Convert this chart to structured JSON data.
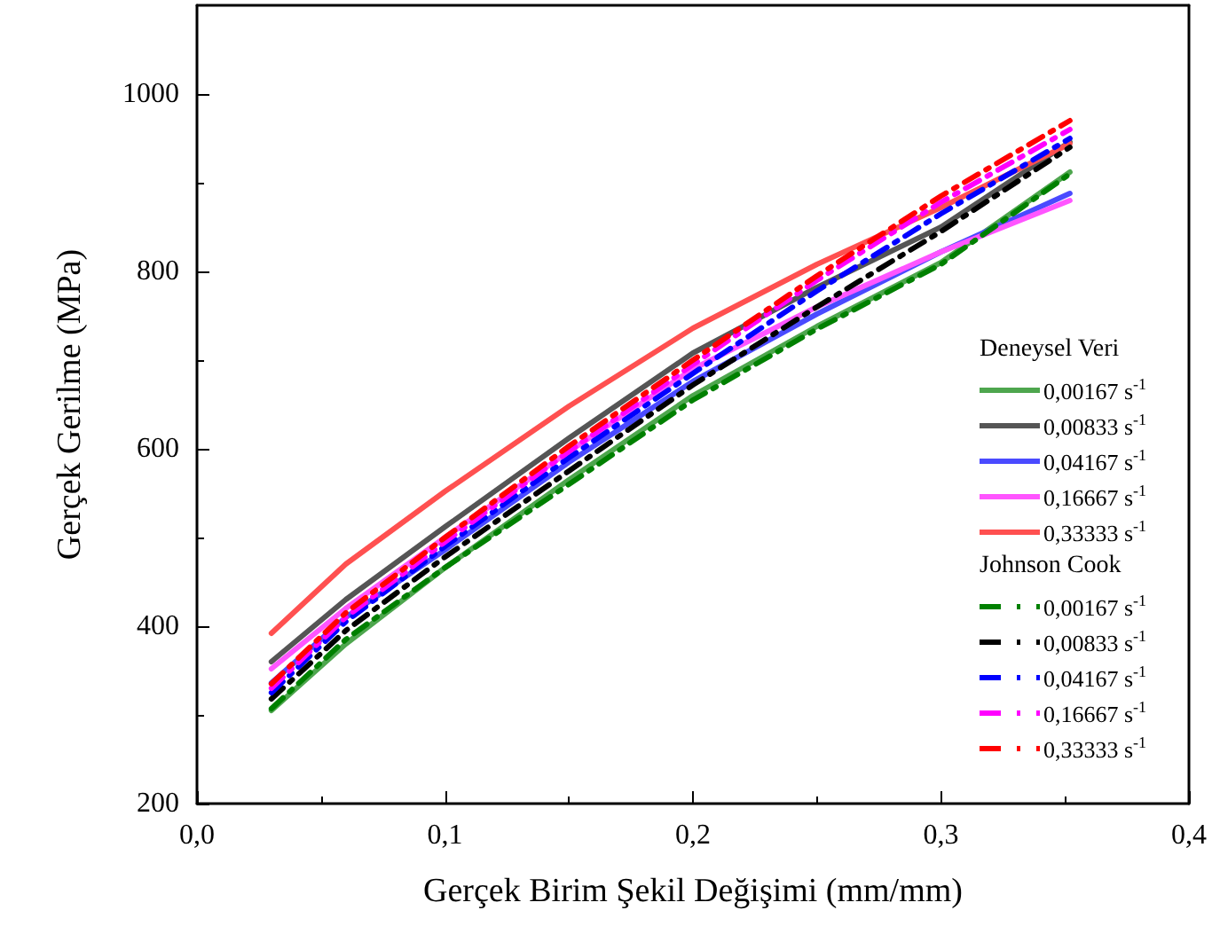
{
  "chart_data": {
    "type": "line",
    "xlabel": "Gerçek Birim Şekil Değişimi (mm/mm)",
    "ylabel": "Gerçek Gerilme (MPa)",
    "legend_title": "Deneysel Veri",
    "annotations": [
      "Johnson Cook"
    ],
    "x": [
      0.03,
      0.06,
      0.1,
      0.15,
      0.2,
      0.25,
      0.3,
      0.352
    ],
    "xlim": [
      0,
      0.4
    ],
    "xticks": [
      {
        "value": 0,
        "label": "0,0"
      },
      {
        "value": 0.1,
        "label": "0,1"
      },
      {
        "value": 0.2,
        "label": "0,2"
      },
      {
        "value": 0.3,
        "label": "0,3"
      },
      {
        "value": 0.4,
        "label": "0,4"
      }
    ],
    "ylim": [
      200,
      1100
    ],
    "yticks": [
      200,
      400,
      600,
      800,
      1000
    ],
    "grid": false,
    "legend": "right",
    "marker": "none",
    "series": [
      {
        "name": "0,00167 s$^{-1}$",
        "color": "#4ea64e",
        "line_style": "solid",
        "values": [
          305,
          380,
          466,
          565,
          660,
          738,
          810,
          912
        ]
      },
      {
        "name": "0,00833 s$^{-1}$",
        "color": "#555555",
        "line_style": "solid",
        "values": [
          360,
          430,
          512,
          612,
          708,
          782,
          850,
          946
        ]
      },
      {
        "name": "0,04167 s$^{-1}$",
        "color": "#4a4aff",
        "line_style": "solid",
        "values": [
          336,
          410,
          486,
          585,
          676,
          752,
          822,
          888
        ]
      },
      {
        "name": "0,16667 s$^{-1}$",
        "color": "#ff55ff",
        "line_style": "solid",
        "values": [
          352,
          420,
          500,
          597,
          690,
          760,
          822,
          880
        ]
      },
      {
        "name": "0,33333 s$^{-1}$",
        "color": "#ff5050",
        "line_style": "solid",
        "values": [
          392,
          470,
          552,
          648,
          736,
          808,
          872,
          944
        ]
      },
      {
        "name": "0,00167 s$^{-1}$",
        "color": "#008000",
        "line_style": "dashed",
        "values": [
          307,
          385,
          466,
          560,
          655,
          735,
          808,
          910
        ]
      },
      {
        "name": "0,00833 s$^{-1}$",
        "color": "#000000",
        "line_style": "dashed",
        "values": [
          318,
          395,
          478,
          575,
          672,
          760,
          845,
          940
        ]
      },
      {
        "name": "0,04167 s$^{-1}$",
        "color": "#0000ff",
        "line_style": "dashed",
        "values": [
          325,
          405,
          490,
          590,
          685,
          778,
          865,
          950
        ]
      },
      {
        "name": "0,16667 s$^{-1}$",
        "color": "#ff00ff",
        "line_style": "dashed",
        "values": [
          330,
          410,
          495,
          597,
          695,
          790,
          878,
          960
        ]
      },
      {
        "name": "0,33333 s$^{-1}$",
        "color": "#ff0000",
        "line_style": "dashed",
        "values": [
          335,
          415,
          500,
          603,
          700,
          795,
          885,
          970
        ]
      }
    ]
  }
}
